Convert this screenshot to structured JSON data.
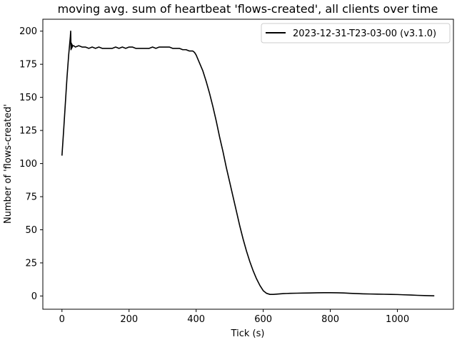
{
  "chart_data": {
    "type": "line",
    "title": "moving avg. sum of heartbeat 'flows-created', all clients over time",
    "xlabel": "Tick (s)",
    "ylabel": "Number of 'flows-created'",
    "xlim": [
      -57,
      1167
    ],
    "ylim": [
      -10,
      209
    ],
    "xticks": [
      0,
      200,
      400,
      600,
      800,
      1000
    ],
    "yticks": [
      0,
      25,
      50,
      75,
      100,
      125,
      150,
      175,
      200
    ],
    "grid": false,
    "legend_position": "top-right",
    "series": [
      {
        "name": "2023-12-31-T23-03-00 (v3.1.0)",
        "color": "#000000",
        "x": [
          0,
          5,
          10,
          15,
          20,
          25,
          26,
          27,
          28,
          29,
          30,
          31,
          32,
          35,
          40,
          50,
          60,
          70,
          80,
          90,
          100,
          110,
          120,
          130,
          140,
          150,
          160,
          170,
          180,
          190,
          200,
          210,
          220,
          230,
          240,
          250,
          260,
          270,
          280,
          290,
          300,
          310,
          320,
          330,
          340,
          350,
          360,
          370,
          380,
          390,
          395,
          400,
          410,
          420,
          430,
          440,
          450,
          460,
          470,
          480,
          490,
          500,
          510,
          520,
          530,
          540,
          550,
          560,
          570,
          580,
          590,
          600,
          610,
          620,
          630,
          640,
          650,
          660,
          670,
          680,
          700,
          720,
          740,
          760,
          780,
          800,
          820,
          840,
          860,
          880,
          900,
          920,
          940,
          960,
          980,
          1000,
          1020,
          1040,
          1060,
          1080,
          1100,
          1110
        ],
        "values": [
          106,
          125,
          145,
          165,
          182,
          196,
          200,
          186,
          191,
          187,
          190,
          188,
          189,
          189,
          188,
          189,
          188,
          188,
          187,
          188,
          187,
          188,
          187,
          187,
          187,
          187,
          188,
          187,
          188,
          187,
          188,
          188,
          187,
          187,
          187,
          187,
          187,
          188,
          187,
          188,
          188,
          188,
          188,
          187,
          187,
          187,
          186,
          186,
          185,
          185,
          184,
          182,
          176,
          170,
          162,
          153,
          143,
          132,
          120,
          109,
          97,
          86,
          75,
          64,
          53,
          43,
          34,
          26,
          19,
          13,
          8,
          4,
          2,
          1.2,
          1.2,
          1.4,
          1.6,
          1.8,
          1.9,
          2.0,
          2.1,
          2.2,
          2.3,
          2.4,
          2.5,
          2.5,
          2.4,
          2.3,
          2.0,
          1.8,
          1.6,
          1.5,
          1.4,
          1.3,
          1.2,
          1.1,
          0.9,
          0.7,
          0.5,
          0.3,
          0.2,
          0.1
        ]
      }
    ]
  }
}
